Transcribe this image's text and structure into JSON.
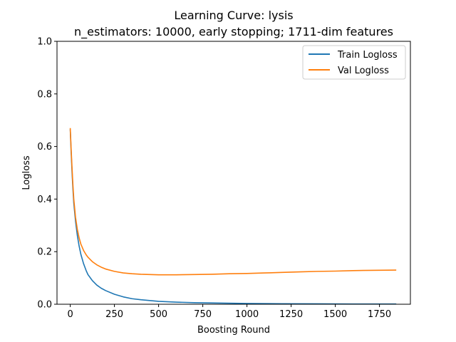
{
  "chart_data": {
    "type": "line",
    "title": "Learning Curve: lysis",
    "subtitle": "n_estimators: 10000, early stopping; 1711-dim features",
    "xlabel": "Boosting Round",
    "ylabel": "Logloss",
    "xlim": [
      -75,
      1925
    ],
    "ylim": [
      0.0,
      1.0
    ],
    "xticks": [
      {
        "value": 0,
        "label": "0"
      },
      {
        "value": 250,
        "label": "250"
      },
      {
        "value": 500,
        "label": "500"
      },
      {
        "value": 750,
        "label": "750"
      },
      {
        "value": 1000,
        "label": "1000"
      },
      {
        "value": 1250,
        "label": "1250"
      },
      {
        "value": 1500,
        "label": "1500"
      },
      {
        "value": 1750,
        "label": "1750"
      }
    ],
    "yticks": [
      {
        "value": 0.0,
        "label": "0.0"
      },
      {
        "value": 0.2,
        "label": "0.2"
      },
      {
        "value": 0.4,
        "label": "0.4"
      },
      {
        "value": 0.6,
        "label": "0.6"
      },
      {
        "value": 0.8,
        "label": "0.8"
      },
      {
        "value": 1.0,
        "label": "1.0"
      }
    ],
    "grid": false,
    "legend_position": "top-right",
    "series": [
      {
        "name": "Train Logloss",
        "color": "#1f77b4",
        "x": [
          0,
          5,
          10,
          15,
          20,
          30,
          40,
          50,
          60,
          75,
          90,
          100,
          125,
          150,
          175,
          200,
          250,
          300,
          350,
          400,
          500,
          600,
          700,
          800,
          1000,
          1200,
          1400,
          1600,
          1845
        ],
        "y": [
          0.665,
          0.58,
          0.505,
          0.44,
          0.385,
          0.315,
          0.262,
          0.222,
          0.19,
          0.155,
          0.128,
          0.113,
          0.09,
          0.073,
          0.061,
          0.052,
          0.038,
          0.028,
          0.021,
          0.017,
          0.011,
          0.008,
          0.006,
          0.005,
          0.003,
          0.002,
          0.0015,
          0.001,
          0.0008
        ]
      },
      {
        "name": "Val Logloss",
        "color": "#ff7f0e",
        "x": [
          0,
          5,
          10,
          15,
          20,
          30,
          40,
          50,
          60,
          75,
          90,
          100,
          125,
          150,
          175,
          200,
          250,
          300,
          350,
          400,
          450,
          500,
          550,
          600,
          700,
          800,
          900,
          1000,
          1100,
          1200,
          1300,
          1400,
          1500,
          1600,
          1700,
          1845
        ],
        "y": [
          0.67,
          0.59,
          0.52,
          0.455,
          0.4,
          0.33,
          0.285,
          0.253,
          0.229,
          0.205,
          0.188,
          0.179,
          0.162,
          0.15,
          0.141,
          0.134,
          0.125,
          0.119,
          0.116,
          0.114,
          0.113,
          0.112,
          0.112,
          0.112,
          0.113,
          0.114,
          0.116,
          0.117,
          0.119,
          0.121,
          0.123,
          0.125,
          0.126,
          0.128,
          0.129,
          0.13
        ]
      }
    ]
  }
}
